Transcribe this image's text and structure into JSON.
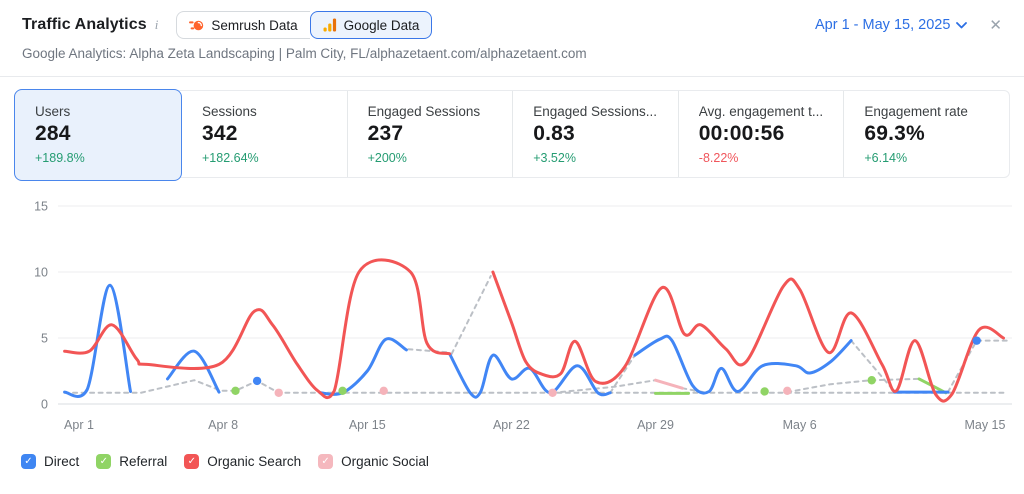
{
  "header": {
    "title": "Traffic Analytics",
    "info_icon": "i",
    "source_toggle": [
      {
        "label": "Semrush Data",
        "icon": "semrush-logo",
        "selected": false
      },
      {
        "label": "Google Data",
        "icon": "google-analytics-bars",
        "selected": true
      }
    ],
    "date_range": "Apr 1 - May 15, 2025",
    "chevron_icon": "chevron-down",
    "close_icon": "✕",
    "subtitle": "Google Analytics: Alpha Zeta Landscaping | Palm City, FL/alphazetaent.com/alphazetaent.com"
  },
  "colors": {
    "accent_blue": "#2c6fe4",
    "selected_card_border": "#4a86ec",
    "selected_card_bg": "#e9f1fc",
    "delta_up": "#259c72",
    "delta_down": "#f0565c",
    "grid": "#ecedef",
    "axis_line": "#d9dce0",
    "axis_text": "#7d838a"
  },
  "metric_cards": [
    {
      "label": "Users",
      "value": "284",
      "delta": "+189.8%",
      "trend": "up",
      "selected": true
    },
    {
      "label": "Sessions",
      "value": "342",
      "delta": "+182.64%",
      "trend": "up",
      "selected": false
    },
    {
      "label": "Engaged Sessions",
      "value": "237",
      "delta": "+200%",
      "trend": "up",
      "selected": false
    },
    {
      "label": "Engaged Sessions...",
      "value": "0.83",
      "delta": "+3.52%",
      "trend": "up",
      "selected": false
    },
    {
      "label": "Avg. engagement t...",
      "value": "00:00:56",
      "delta": "-8.22%",
      "trend": "down",
      "selected": false
    },
    {
      "label": "Engagement rate",
      "value": "69.3%",
      "delta": "+6.14%",
      "trend": "up",
      "selected": false
    }
  ],
  "chart_data": {
    "type": "line",
    "title": "Users by channel over time",
    "x_unit": "days since Apr 1, 2025",
    "y_axis": {
      "ticks": [
        0,
        5,
        10,
        15
      ],
      "max": 15
    },
    "x_axis": {
      "ticks": [
        {
          "day": 0,
          "label": "Apr 1"
        },
        {
          "day": 7,
          "label": "Apr 8"
        },
        {
          "day": 14,
          "label": "Apr 15"
        },
        {
          "day": 21,
          "label": "Apr 22"
        },
        {
          "day": 28,
          "label": "Apr 29"
        },
        {
          "day": 35,
          "label": "May 6"
        },
        {
          "day": 44,
          "label": "May 15"
        }
      ]
    },
    "series": [
      {
        "name": "Gap bridge (no data)",
        "color": "#bcc0c6",
        "dashed": true,
        "smooth": false,
        "width": 2,
        "segments": [
          [
            [
              -0.7,
              0.85
            ],
            [
              3,
              0.85
            ],
            [
              5.6,
              1.8
            ],
            [
              6.9,
              1.0
            ],
            [
              7.6,
              1.0
            ],
            [
              8.65,
              1.75
            ],
            [
              9.7,
              0.85
            ],
            [
              45.1,
              0.85
            ]
          ],
          [
            [
              16,
              4.15
            ],
            [
              18,
              3.9
            ]
          ],
          [
            [
              18.1,
              3.8
            ],
            [
              20,
              9.7
            ]
          ],
          [
            [
              23,
              0.85
            ],
            [
              26,
              1.3
            ],
            [
              28,
              1.8
            ]
          ],
          [
            [
              25.8,
              0.85
            ],
            [
              27,
              3.7
            ]
          ],
          [
            [
              29.3,
              1.2
            ],
            [
              30.5,
              0.85
            ]
          ],
          [
            [
              34.4,
              0.9
            ],
            [
              36.5,
              1.5
            ],
            [
              38.5,
              1.8
            ],
            [
              40.8,
              1.9
            ]
          ],
          [
            [
              37.5,
              4.8
            ],
            [
              39.6,
              0.95
            ]
          ],
          [
            [
              42.2,
              0.9
            ],
            [
              43.6,
              4.8
            ],
            [
              45.1,
              4.8
            ]
          ]
        ],
        "dots": []
      },
      {
        "name": "Organic Social",
        "color": "#f5b3ba",
        "dashed": false,
        "smooth": true,
        "width": 3,
        "segments": [
          [
            [
              28,
              1.8
            ],
            [
              29.3,
              1.2
            ]
          ]
        ],
        "dots": [
          [
            9.7,
            0.85
          ],
          [
            14.8,
            1.0
          ],
          [
            23,
            0.85
          ],
          [
            34.4,
            1.0
          ]
        ]
      },
      {
        "name": "Referral",
        "color": "#90d465",
        "dashed": false,
        "smooth": true,
        "width": 3,
        "segments": [
          [
            [
              28,
              0.8
            ],
            [
              29.6,
              0.8
            ]
          ],
          [
            [
              40.8,
              1.9
            ],
            [
              42.1,
              0.85
            ]
          ]
        ],
        "dots": [
          [
            7.6,
            1.0
          ],
          [
            12.8,
            1.0
          ],
          [
            33.3,
            0.95
          ],
          [
            38.5,
            1.8
          ]
        ]
      },
      {
        "name": "Direct",
        "color": "#4186f5",
        "dashed": false,
        "smooth": true,
        "width": 3,
        "segments": [
          [
            [
              -0.7,
              0.9
            ],
            [
              0.4,
              1.1
            ],
            [
              1.5,
              9
            ],
            [
              2.5,
              0.95
            ]
          ],
          [
            [
              4.3,
              1.9
            ],
            [
              5.6,
              4
            ],
            [
              6.8,
              0.9
            ]
          ],
          [
            [
              11.7,
              0.85
            ],
            [
              12.8,
              0.85
            ],
            [
              14,
              2.5
            ],
            [
              14.9,
              4.9
            ],
            [
              15.9,
              4.1
            ]
          ],
          [
            [
              18,
              3.8
            ],
            [
              19,
              0.85
            ],
            [
              19.5,
              0.9
            ],
            [
              20.1,
              3.7
            ],
            [
              21,
              1.9
            ],
            [
              21.9,
              2.7
            ],
            [
              22.9,
              0.85
            ],
            [
              24.2,
              2.9
            ],
            [
              25.2,
              0.85
            ],
            [
              25.8,
              0.85
            ]
          ],
          [
            [
              27,
              3.7
            ],
            [
              28.2,
              4.9
            ],
            [
              28.8,
              4.8
            ],
            [
              29.8,
              1.4
            ],
            [
              30.6,
              0.95
            ],
            [
              31.2,
              2.7
            ],
            [
              32,
              0.95
            ],
            [
              33.2,
              2.9
            ],
            [
              34.8,
              2.9
            ],
            [
              35.5,
              2.35
            ],
            [
              36.5,
              3.2
            ],
            [
              37.5,
              4.8
            ]
          ],
          [
            [
              39.6,
              0.9
            ],
            [
              42.2,
              0.9
            ]
          ]
        ],
        "dots": [
          [
            8.65,
            1.75
          ],
          [
            43.6,
            4.8
          ]
        ]
      },
      {
        "name": "Organic Search",
        "color": "#f25555",
        "dashed": false,
        "smooth": true,
        "width": 3,
        "segments": [
          [
            [
              -0.7,
              4
            ],
            [
              0.5,
              4
            ],
            [
              1.6,
              6
            ],
            [
              2.8,
              3.4
            ],
            [
              3.3,
              3
            ],
            [
              6.8,
              3
            ],
            [
              8.5,
              7
            ],
            [
              9.4,
              6
            ],
            [
              10.6,
              3
            ],
            [
              11.6,
              1
            ],
            [
              12.4,
              1
            ],
            [
              13.6,
              10
            ],
            [
              16.1,
              10
            ],
            [
              16.9,
              4.6
            ],
            [
              18,
              3.8
            ]
          ],
          [
            [
              20.1,
              10
            ],
            [
              21,
              6.2
            ],
            [
              21.7,
              3.2
            ],
            [
              22.5,
              2.25
            ],
            [
              23.4,
              2.3
            ],
            [
              24.1,
              4.75
            ],
            [
              25.1,
              1.7
            ],
            [
              26.5,
              2.8
            ],
            [
              28.3,
              8.8
            ],
            [
              29.4,
              5.3
            ],
            [
              30.2,
              6
            ],
            [
              31.4,
              4.2
            ],
            [
              32.4,
              3.2
            ],
            [
              34.2,
              8.9
            ],
            [
              35,
              8.7
            ],
            [
              36.4,
              3.9
            ],
            [
              37.5,
              6.9
            ],
            [
              39,
              3
            ],
            [
              39.7,
              1
            ],
            [
              40.6,
              4.8
            ],
            [
              41.6,
              0.75
            ],
            [
              42.4,
              0.75
            ],
            [
              43.7,
              5.6
            ],
            [
              44.9,
              5
            ]
          ]
        ],
        "dots": []
      }
    ]
  },
  "legend": [
    {
      "label": "Direct",
      "color": "#3f86f2",
      "check": "✓",
      "checked": true
    },
    {
      "label": "Referral",
      "color": "#90d465",
      "check": "✓",
      "checked": true
    },
    {
      "label": "Organic Search",
      "color": "#f25555",
      "check": "✓",
      "checked": true
    },
    {
      "label": "Organic Social",
      "color": "#f5b8be",
      "check": "✓",
      "checked": true
    }
  ]
}
